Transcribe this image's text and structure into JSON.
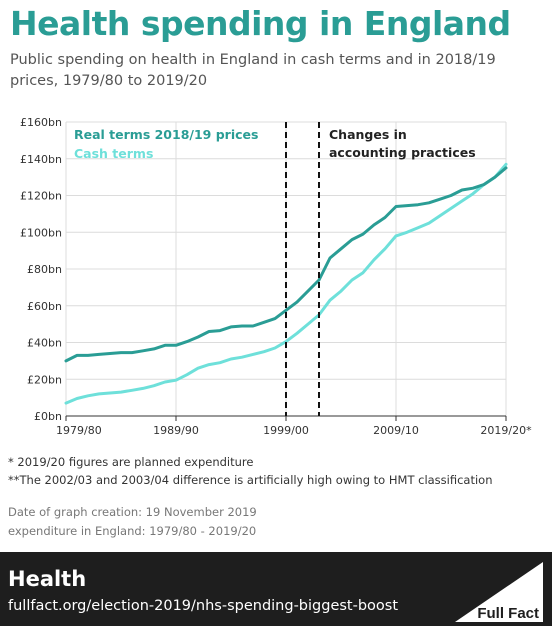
{
  "header": {
    "title": "Health spending in England",
    "subtitle": "Public spending on health in England in cash terms and in 2018/19 prices, 1979/80 to 2019/20"
  },
  "notes": [
    "* 2019/20 figures are planned expenditure",
    "**The 2002/03 and 2003/04 difference is artificially high owing to HMT classification"
  ],
  "meta": {
    "date_line": "Date of graph creation: 19 November 2019",
    "source_line": "expenditure in England: 1979/80 - 2019/20"
  },
  "footer": {
    "title": "Health",
    "url": "fullfact.org/election-2019/nhs-spending-biggest-boost",
    "logo_text": "Full Fact"
  },
  "colors": {
    "title": "#2a9d95",
    "real_terms": "#2a9d95",
    "cash_terms": "#6ee0da",
    "footer_bg": "#1e1e1e"
  },
  "chart_data": {
    "type": "line",
    "x": [
      "1979/80",
      "1980/81",
      "1981/82",
      "1982/83",
      "1983/84",
      "1984/85",
      "1985/86",
      "1986/87",
      "1987/88",
      "1988/89",
      "1989/90",
      "1990/91",
      "1991/92",
      "1992/93",
      "1993/94",
      "1994/95",
      "1995/96",
      "1996/97",
      "1997/98",
      "1998/99",
      "1999/00",
      "2000/01",
      "2001/02",
      "2002/03",
      "2003/04",
      "2004/05",
      "2005/06",
      "2006/07",
      "2007/08",
      "2008/09",
      "2009/10",
      "2010/11",
      "2011/12",
      "2012/13",
      "2013/14",
      "2014/15",
      "2015/16",
      "2016/17",
      "2017/18",
      "2018/19",
      "2019/20"
    ],
    "x_tick_labels": [
      "1979/80",
      "1989/90",
      "1999/00",
      "2009/10",
      "2019/20*"
    ],
    "x_tick_indices": [
      0,
      10,
      20,
      30,
      40
    ],
    "y_tick_labels": [
      "£0bn",
      "£20bn",
      "£40bn",
      "£60bn",
      "£80bn",
      "£100bn",
      "£120bn",
      "£140bn",
      "£160bn"
    ],
    "ylim": [
      0,
      160
    ],
    "series": [
      {
        "name": "Real terms 2018/19 prices",
        "color": "#2a9d95",
        "values": [
          30,
          33,
          33,
          33.5,
          34,
          34.5,
          34.5,
          35.5,
          36.5,
          38.5,
          38.5,
          40.5,
          43,
          46,
          46.5,
          48.5,
          49,
          49,
          51,
          53,
          57.5,
          62,
          68,
          74,
          86,
          91,
          96,
          99,
          104,
          108,
          114,
          114.5,
          115,
          116,
          118,
          120,
          123,
          124,
          126,
          130,
          135
        ]
      },
      {
        "name": "Cash terms",
        "color": "#6ee0da",
        "values": [
          7,
          9.5,
          11,
          12,
          12.5,
          13,
          14,
          15,
          16.5,
          18.5,
          19.5,
          22.5,
          26,
          28,
          29,
          31,
          32,
          33.5,
          35,
          37,
          40.5,
          45,
          50,
          55,
          63,
          68,
          74,
          78,
          85,
          91,
          98,
          100,
          102.5,
          105,
          109,
          113,
          117,
          121,
          126,
          130,
          137
        ]
      }
    ],
    "annotations": {
      "changes_text": [
        "Changes in",
        "accounting practices"
      ],
      "dashed_lines_at": [
        20,
        23
      ]
    }
  }
}
